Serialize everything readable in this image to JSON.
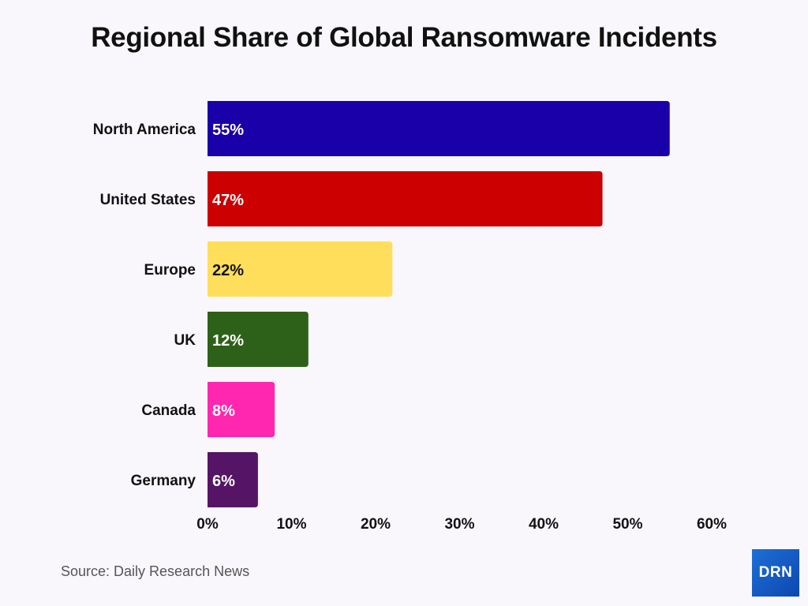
{
  "chart_data": {
    "type": "bar",
    "orientation": "horizontal",
    "title": "Regional Share of Global Ransomware Incidents",
    "categories": [
      "North America",
      "United States",
      "Europe",
      "UK",
      "Canada",
      "Germany"
    ],
    "values": [
      55,
      47,
      22,
      12,
      8,
      6
    ],
    "data_labels": [
      "55%",
      "47%",
      "22%",
      "12%",
      "8%",
      "6%"
    ],
    "colors": [
      "#1a00a8",
      "#cc0000",
      "#ffde5c",
      "#2d6119",
      "#ff26b0",
      "#561466"
    ],
    "label_colors": [
      "#ffffff",
      "#ffffff",
      "#111111",
      "#ffffff",
      "#ffffff",
      "#ffffff"
    ],
    "xlim": [
      0,
      60
    ],
    "xticks": [
      0,
      10,
      20,
      30,
      40,
      50,
      60
    ],
    "xtick_labels": [
      "0%",
      "10%",
      "20%",
      "30%",
      "40%",
      "50%",
      "60%"
    ],
    "xlabel": "",
    "ylabel": "",
    "grid": false,
    "legend": "none"
  },
  "source": "Source: Daily Research News",
  "logo_text": "DRN"
}
